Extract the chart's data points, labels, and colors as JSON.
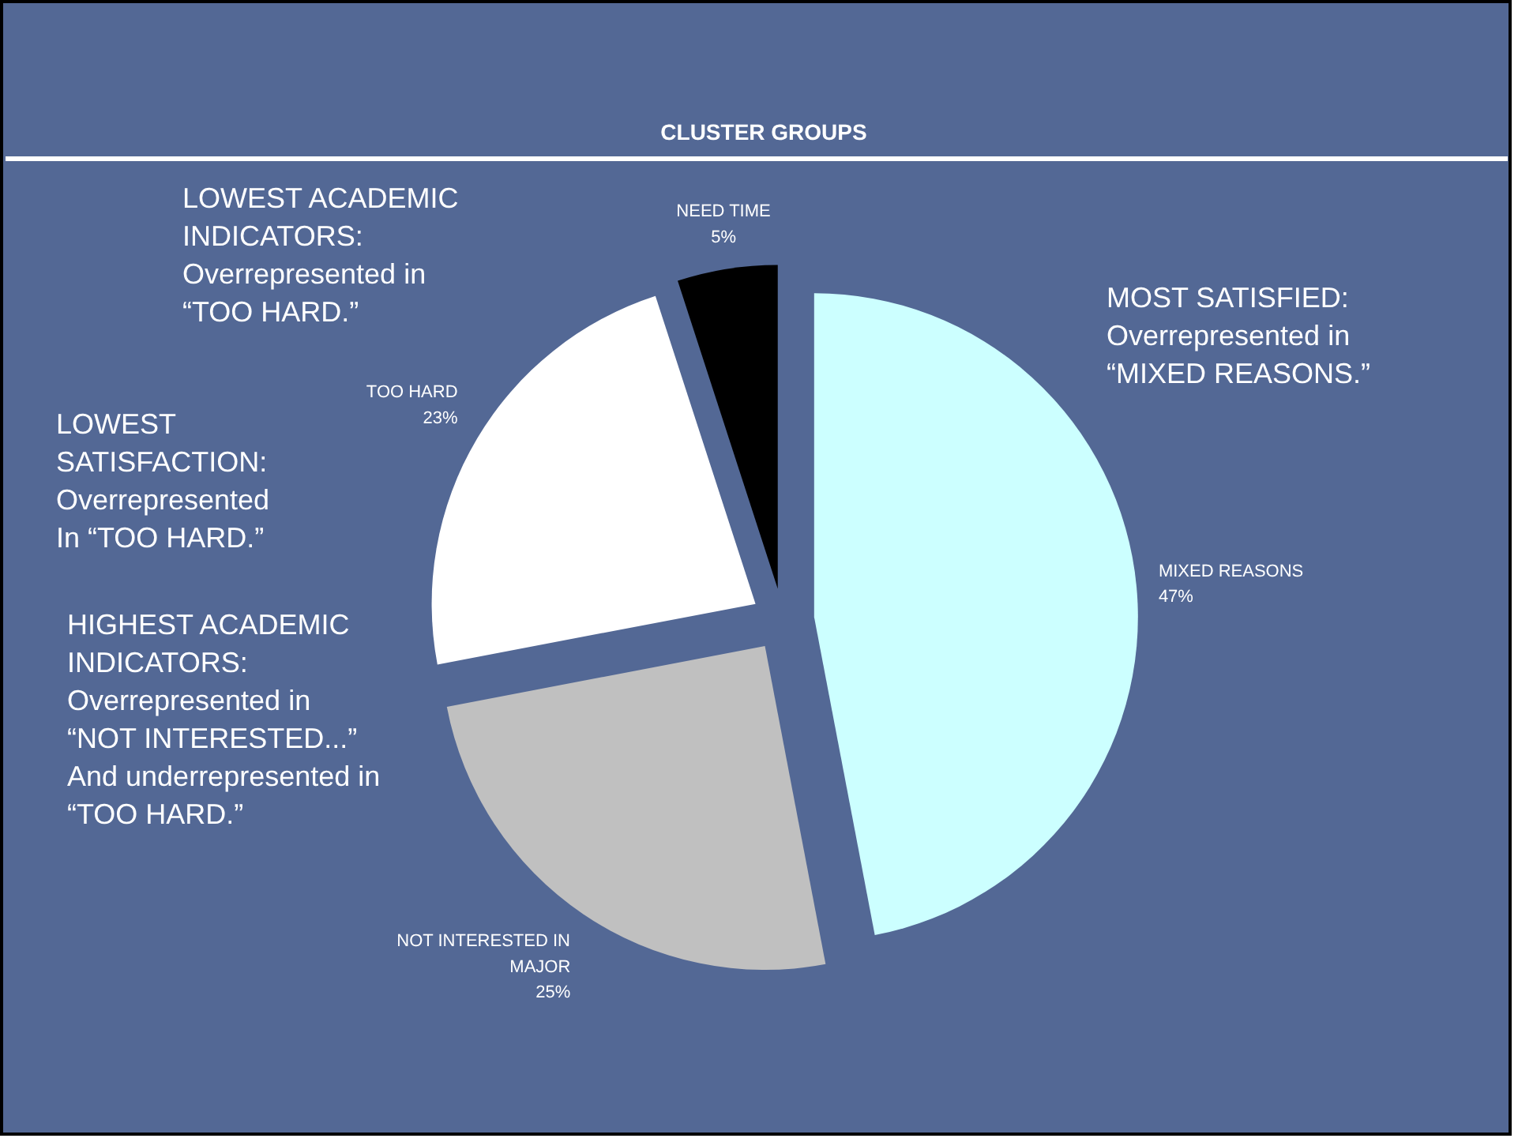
{
  "chart_data": {
    "type": "pie",
    "title": "CLUSTER GROUPS",
    "categories": [
      "MIXED REASONS",
      "NOT INTERESTED IN\nMAJOR",
      "TOO HARD",
      "NEED TIME"
    ],
    "values": [
      47,
      25,
      23,
      5
    ],
    "value_labels": [
      "47%",
      "25%",
      "23%",
      "5%"
    ],
    "colors": [
      "#ccffff",
      "#c0c0c0",
      "#ffffff",
      "#000000"
    ],
    "annotations": [
      "LOWEST ACADEMIC\nINDICATORS:\nOverrepresented in\n“TOO HARD.”",
      "LOWEST\nSATISFACTION:\nOverrepresented\nIn “TOO HARD.”",
      "HIGHEST ACADEMIC\nINDICATORS:\nOverrepresented in\n“NOT INTERESTED...”\nAnd underrepresented in\n“TOO HARD.”",
      "MOST SATISFIED:\nOverrepresented in\n“MIXED REASONS.”"
    ]
  }
}
